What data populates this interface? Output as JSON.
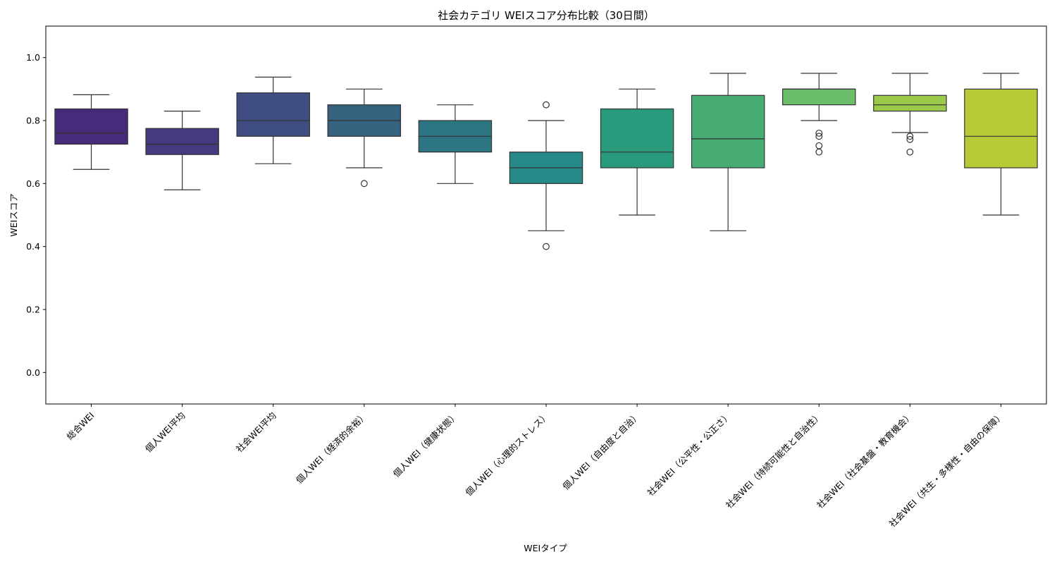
{
  "chart_data": {
    "type": "box",
    "title": "社会カテゴリ WEIスコア分布比較（30日間）",
    "xlabel": "WEIタイプ",
    "ylabel": "WEIスコア",
    "ylim": [
      -0.1,
      1.1
    ],
    "yticks": [
      "0.0",
      "0.2",
      "0.4",
      "0.6",
      "0.8",
      "1.0"
    ],
    "grid": false,
    "categories": [
      "総合WEI",
      "個人WEI平均",
      "社会WEI平均",
      "個人WEI（経済的余裕）",
      "個人WEI（健康状態）",
      "個人WEI（心理的ストレス）",
      "個人WEI（自由度と自治）",
      "社会WEI（公平性・公正さ）",
      "社会WEI（持続可能性と自治性）",
      "社会WEI（社会基盤・教育機会）",
      "社会WEI（共生・多様性・自由の保障）"
    ],
    "boxes": [
      {
        "whislo": 0.645,
        "q1": 0.725,
        "med": 0.76,
        "q3": 0.837,
        "whishi": 0.882,
        "fliers": [],
        "color": "#472a7a"
      },
      {
        "whislo": 0.58,
        "q1": 0.692,
        "med": 0.725,
        "q3": 0.775,
        "whishi": 0.83,
        "fliers": [],
        "color": "#46397f"
      },
      {
        "whislo": 0.663,
        "q1": 0.75,
        "med": 0.8,
        "q3": 0.888,
        "whishi": 0.938,
        "fliers": [],
        "color": "#3f4d82"
      },
      {
        "whislo": 0.65,
        "q1": 0.75,
        "med": 0.8,
        "q3": 0.85,
        "whishi": 0.9,
        "fliers": [
          0.6
        ],
        "color": "#35627f"
      },
      {
        "whislo": 0.6,
        "q1": 0.7,
        "med": 0.75,
        "q3": 0.8,
        "whishi": 0.85,
        "fliers": [],
        "color": "#2e7584"
      },
      {
        "whislo": 0.45,
        "q1": 0.6,
        "med": 0.65,
        "q3": 0.7,
        "whishi": 0.8,
        "fliers": [
          0.85,
          0.4
        ],
        "color": "#268a88"
      },
      {
        "whislo": 0.5,
        "q1": 0.65,
        "med": 0.7,
        "q3": 0.837,
        "whishi": 0.9,
        "fliers": [],
        "color": "#2a9a7d"
      },
      {
        "whislo": 0.45,
        "q1": 0.65,
        "med": 0.742,
        "q3": 0.88,
        "whishi": 0.95,
        "fliers": [],
        "color": "#46ac74"
      },
      {
        "whislo": 0.8,
        "q1": 0.85,
        "med": 0.9,
        "q3": 0.9,
        "whishi": 0.95,
        "fliers": [
          0.76,
          0.75,
          0.72,
          0.7
        ],
        "color": "#6cbf6a"
      },
      {
        "whislo": 0.762,
        "q1": 0.83,
        "med": 0.85,
        "q3": 0.88,
        "whishi": 0.95,
        "fliers": [
          0.75,
          0.74,
          0.7
        ],
        "color": "#9bc94a"
      },
      {
        "whislo": 0.5,
        "q1": 0.65,
        "med": 0.75,
        "q3": 0.9,
        "whishi": 0.95,
        "fliers": [],
        "color": "#b7c936"
      }
    ]
  }
}
